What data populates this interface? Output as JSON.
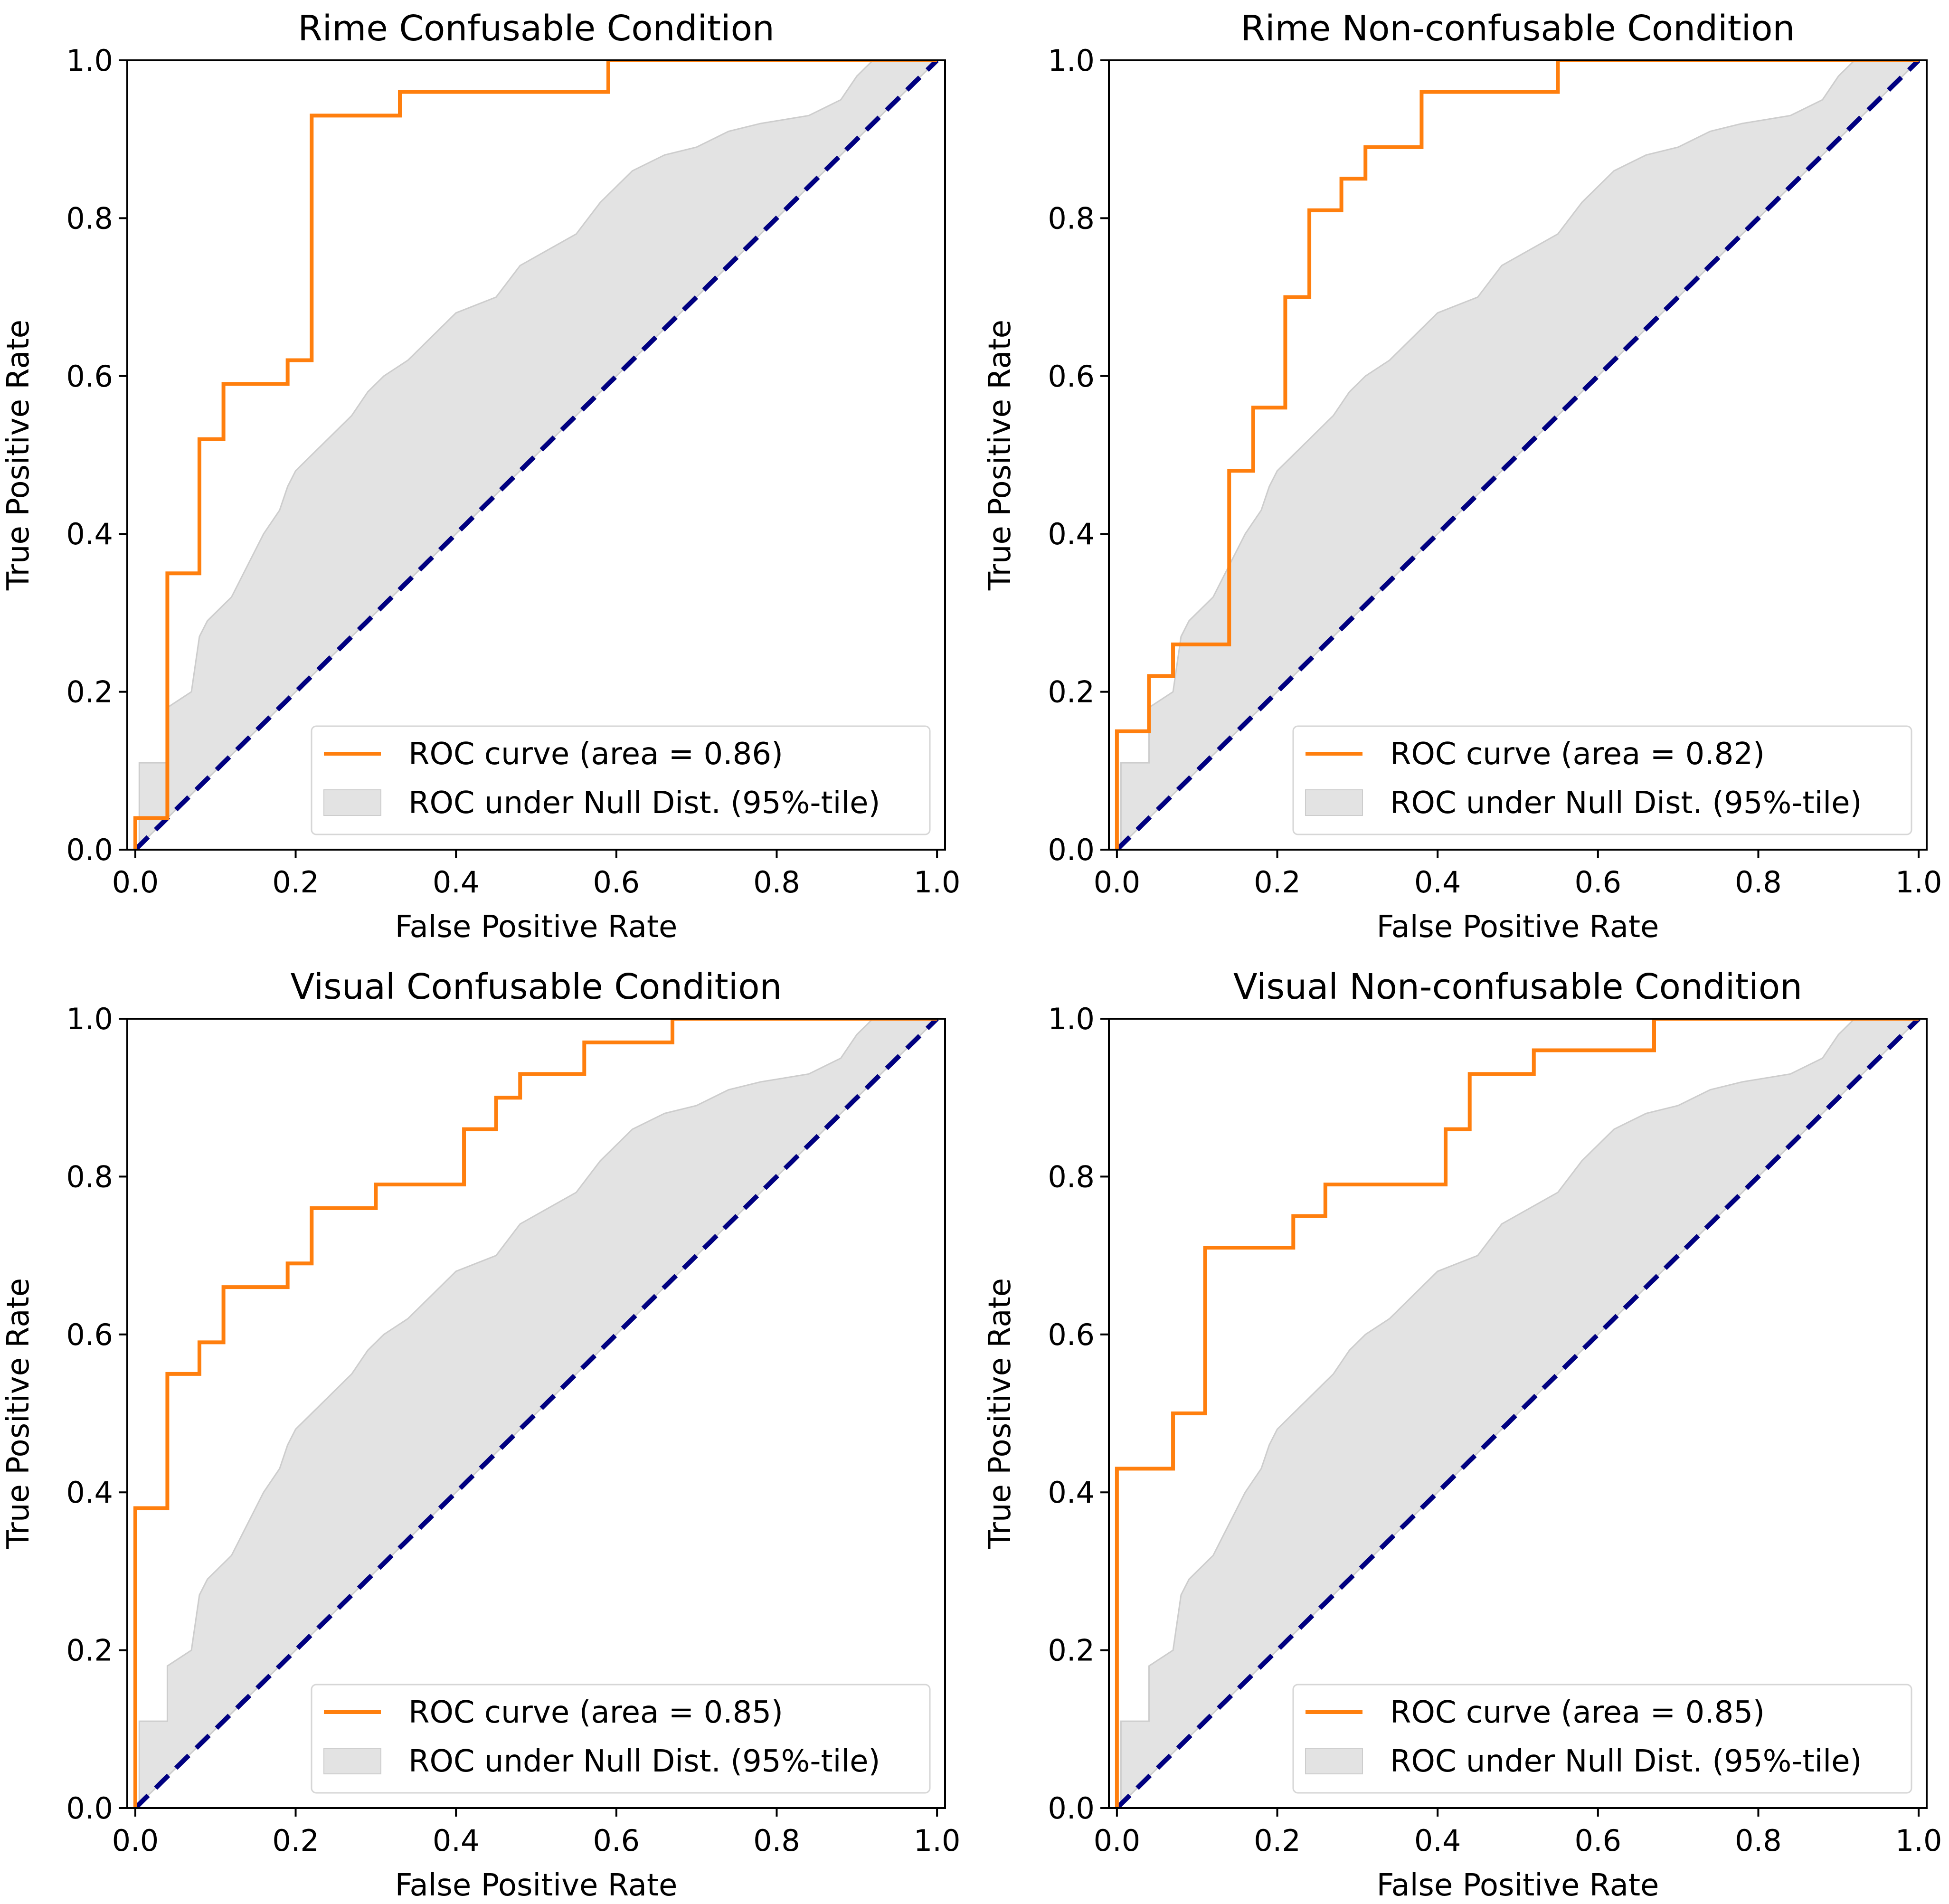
{
  "figure": {
    "colors": {
      "roc": "#ff7f0e",
      "null_fill": "#e3e3e3",
      "null_edge": "#cdcdcd",
      "diagonal": "#000080",
      "frame": "#000000"
    }
  },
  "chart_data": [
    {
      "type": "line",
      "title": "Rime Confusable Condition",
      "xlabel": "False Positive Rate",
      "ylabel": "True Positive Rate",
      "xlim": [
        0.0,
        1.0
      ],
      "ylim": [
        0.0,
        1.0
      ],
      "xticks": [
        "0.0",
        "0.2",
        "0.4",
        "0.6",
        "0.8",
        "1.0"
      ],
      "yticks": [
        "0.0",
        "0.2",
        "0.4",
        "0.6",
        "0.8",
        "1.0"
      ],
      "legend": {
        "position": "lower-right",
        "roc_label": "ROC curve (area = 0.86)",
        "null_label": "ROC under Null Dist. (95%-tile)"
      },
      "roc": {
        "fpr": [
          0,
          0,
          0.04,
          0.04,
          0.08,
          0.08,
          0.11,
          0.11,
          0.19,
          0.19,
          0.22,
          0.22,
          0.33,
          0.33,
          0.59,
          0.59,
          1.0
        ],
        "tpr": [
          0,
          0.04,
          0.04,
          0.35,
          0.35,
          0.52,
          0.52,
          0.59,
          0.59,
          0.62,
          0.62,
          0.93,
          0.93,
          0.96,
          0.96,
          1.0,
          1.0
        ]
      },
      "null_band": {
        "fpr": [
          0,
          0.005,
          0.005,
          0.04,
          0.04,
          0.07,
          0.08,
          0.09,
          0.12,
          0.14,
          0.16,
          0.18,
          0.19,
          0.2,
          0.22,
          0.24,
          0.27,
          0.29,
          0.31,
          0.34,
          0.37,
          0.4,
          0.45,
          0.48,
          0.55,
          0.58,
          0.62,
          0.66,
          0.7,
          0.74,
          0.78,
          0.84,
          0.88,
          0.9,
          0.92,
          1.0
        ],
        "tpr": [
          0,
          0,
          0.11,
          0.11,
          0.18,
          0.2,
          0.27,
          0.29,
          0.32,
          0.36,
          0.4,
          0.43,
          0.46,
          0.48,
          0.5,
          0.52,
          0.55,
          0.58,
          0.6,
          0.62,
          0.65,
          0.68,
          0.7,
          0.74,
          0.78,
          0.82,
          0.86,
          0.88,
          0.89,
          0.91,
          0.92,
          0.93,
          0.95,
          0.98,
          1.0,
          1.0
        ]
      },
      "diagonal": [
        [
          0,
          0
        ],
        [
          1,
          1
        ]
      ]
    },
    {
      "type": "line",
      "title": "Rime Non-confusable Condition",
      "xlabel": "False Positive Rate",
      "ylabel": "True Positive Rate",
      "xlim": [
        0.0,
        1.0
      ],
      "ylim": [
        0.0,
        1.0
      ],
      "xticks": [
        "0.0",
        "0.2",
        "0.4",
        "0.6",
        "0.8",
        "1.0"
      ],
      "yticks": [
        "0.0",
        "0.2",
        "0.4",
        "0.6",
        "0.8",
        "1.0"
      ],
      "legend": {
        "position": "lower-right",
        "roc_label": "ROC curve (area = 0.82)",
        "null_label": "ROC under Null Dist. (95%-tile)"
      },
      "roc": {
        "fpr": [
          0,
          0,
          0.04,
          0.04,
          0.07,
          0.07,
          0.14,
          0.14,
          0.17,
          0.17,
          0.21,
          0.21,
          0.24,
          0.24,
          0.28,
          0.28,
          0.31,
          0.31,
          0.38,
          0.38,
          0.55,
          0.55,
          1.0
        ],
        "tpr": [
          0,
          0.15,
          0.15,
          0.22,
          0.22,
          0.26,
          0.26,
          0.48,
          0.48,
          0.56,
          0.56,
          0.7,
          0.7,
          0.81,
          0.81,
          0.85,
          0.85,
          0.89,
          0.89,
          0.96,
          0.96,
          1.0,
          1.0
        ]
      },
      "null_band": {
        "fpr": [
          0,
          0.005,
          0.005,
          0.04,
          0.04,
          0.07,
          0.08,
          0.09,
          0.12,
          0.14,
          0.16,
          0.18,
          0.19,
          0.2,
          0.22,
          0.24,
          0.27,
          0.29,
          0.31,
          0.34,
          0.37,
          0.4,
          0.45,
          0.48,
          0.55,
          0.58,
          0.62,
          0.66,
          0.7,
          0.74,
          0.78,
          0.84,
          0.88,
          0.9,
          0.92,
          1.0
        ],
        "tpr": [
          0,
          0,
          0.11,
          0.11,
          0.18,
          0.2,
          0.27,
          0.29,
          0.32,
          0.36,
          0.4,
          0.43,
          0.46,
          0.48,
          0.5,
          0.52,
          0.55,
          0.58,
          0.6,
          0.62,
          0.65,
          0.68,
          0.7,
          0.74,
          0.78,
          0.82,
          0.86,
          0.88,
          0.89,
          0.91,
          0.92,
          0.93,
          0.95,
          0.98,
          1.0,
          1.0
        ]
      },
      "diagonal": [
        [
          0,
          0
        ],
        [
          1,
          1
        ]
      ]
    },
    {
      "type": "line",
      "title": "Visual Confusable Condition",
      "xlabel": "False Positive Rate",
      "ylabel": "True Positive Rate",
      "xlim": [
        0.0,
        1.0
      ],
      "ylim": [
        0.0,
        1.0
      ],
      "xticks": [
        "0.0",
        "0.2",
        "0.4",
        "0.6",
        "0.8",
        "1.0"
      ],
      "yticks": [
        "0.0",
        "0.2",
        "0.4",
        "0.6",
        "0.8",
        "1.0"
      ],
      "legend": {
        "position": "lower-right",
        "roc_label": "ROC curve (area = 0.85)",
        "null_label": "ROC under Null Dist. (95%-tile)"
      },
      "roc": {
        "fpr": [
          0,
          0,
          0.04,
          0.04,
          0.08,
          0.08,
          0.11,
          0.11,
          0.19,
          0.19,
          0.22,
          0.22,
          0.3,
          0.3,
          0.41,
          0.41,
          0.45,
          0.45,
          0.48,
          0.48,
          0.56,
          0.56,
          0.67,
          0.67,
          1.0
        ],
        "tpr": [
          0,
          0.38,
          0.38,
          0.55,
          0.55,
          0.59,
          0.59,
          0.66,
          0.66,
          0.69,
          0.69,
          0.76,
          0.76,
          0.79,
          0.79,
          0.86,
          0.86,
          0.9,
          0.9,
          0.93,
          0.93,
          0.97,
          0.97,
          1.0,
          1.0
        ]
      },
      "null_band": {
        "fpr": [
          0,
          0.005,
          0.005,
          0.04,
          0.04,
          0.07,
          0.08,
          0.09,
          0.12,
          0.14,
          0.16,
          0.18,
          0.19,
          0.2,
          0.22,
          0.24,
          0.27,
          0.29,
          0.31,
          0.34,
          0.37,
          0.4,
          0.45,
          0.48,
          0.55,
          0.58,
          0.62,
          0.66,
          0.7,
          0.74,
          0.78,
          0.84,
          0.88,
          0.9,
          0.92,
          1.0
        ],
        "tpr": [
          0,
          0,
          0.11,
          0.11,
          0.18,
          0.2,
          0.27,
          0.29,
          0.32,
          0.36,
          0.4,
          0.43,
          0.46,
          0.48,
          0.5,
          0.52,
          0.55,
          0.58,
          0.6,
          0.62,
          0.65,
          0.68,
          0.7,
          0.74,
          0.78,
          0.82,
          0.86,
          0.88,
          0.89,
          0.91,
          0.92,
          0.93,
          0.95,
          0.98,
          1.0,
          1.0
        ]
      },
      "diagonal": [
        [
          0,
          0
        ],
        [
          1,
          1
        ]
      ]
    },
    {
      "type": "line",
      "title": "Visual Non-confusable Condition",
      "xlabel": "False Positive Rate",
      "ylabel": "True Positive Rate",
      "xlim": [
        0.0,
        1.0
      ],
      "ylim": [
        0.0,
        1.0
      ],
      "xticks": [
        "0.0",
        "0.2",
        "0.4",
        "0.6",
        "0.8",
        "1.0"
      ],
      "yticks": [
        "0.0",
        "0.2",
        "0.4",
        "0.6",
        "0.8",
        "1.0"
      ],
      "legend": {
        "position": "lower-right",
        "roc_label": "ROC curve (area = 0.85)",
        "null_label": "ROC under Null Dist. (95%-tile)"
      },
      "roc": {
        "fpr": [
          0,
          0,
          0.07,
          0.07,
          0.11,
          0.11,
          0.22,
          0.22,
          0.26,
          0.26,
          0.41,
          0.41,
          0.44,
          0.44,
          0.52,
          0.52,
          0.67,
          0.67,
          1.0
        ],
        "tpr": [
          0,
          0.43,
          0.43,
          0.5,
          0.5,
          0.71,
          0.71,
          0.75,
          0.75,
          0.79,
          0.79,
          0.86,
          0.86,
          0.93,
          0.93,
          0.96,
          0.96,
          1.0,
          1.0
        ]
      },
      "null_band": {
        "fpr": [
          0,
          0.005,
          0.005,
          0.04,
          0.04,
          0.07,
          0.08,
          0.09,
          0.12,
          0.14,
          0.16,
          0.18,
          0.19,
          0.2,
          0.22,
          0.24,
          0.27,
          0.29,
          0.31,
          0.34,
          0.37,
          0.4,
          0.45,
          0.48,
          0.55,
          0.58,
          0.62,
          0.66,
          0.7,
          0.74,
          0.78,
          0.84,
          0.88,
          0.9,
          0.92,
          1.0
        ],
        "tpr": [
          0,
          0,
          0.11,
          0.11,
          0.18,
          0.2,
          0.27,
          0.29,
          0.32,
          0.36,
          0.4,
          0.43,
          0.46,
          0.48,
          0.5,
          0.52,
          0.55,
          0.58,
          0.6,
          0.62,
          0.65,
          0.68,
          0.7,
          0.74,
          0.78,
          0.82,
          0.86,
          0.88,
          0.89,
          0.91,
          0.92,
          0.93,
          0.95,
          0.98,
          1.0,
          1.0
        ]
      },
      "diagonal": [
        [
          0,
          0
        ],
        [
          1,
          1
        ]
      ]
    }
  ]
}
